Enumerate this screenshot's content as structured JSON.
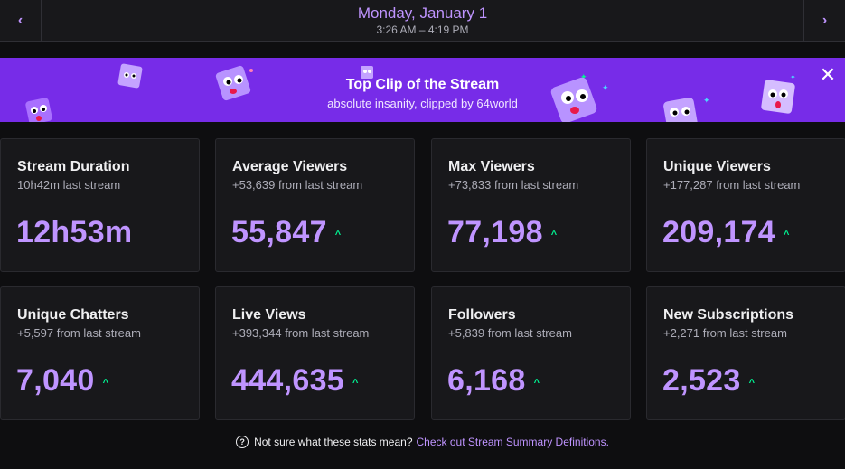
{
  "header": {
    "date": "Monday, January 1",
    "time_range": "3:26 AM – 4:19 PM",
    "prev_icon": "‹",
    "next_icon": "›"
  },
  "banner": {
    "title": "Top Clip of the Stream",
    "subtitle": "absolute insanity, clipped by 64world",
    "close_icon": "✕"
  },
  "cards": [
    {
      "title": "Stream Duration",
      "sub": "10h42m last stream",
      "value": "12h53m",
      "trend": ""
    },
    {
      "title": "Average Viewers",
      "sub": "+53,639 from last stream",
      "value": "55,847",
      "trend": "^"
    },
    {
      "title": "Max Viewers",
      "sub": "+73,833 from last stream",
      "value": "77,198",
      "trend": "^"
    },
    {
      "title": "Unique Viewers",
      "sub": "+177,287 from last stream",
      "value": "209,174",
      "trend": "^"
    },
    {
      "title": "Unique Chatters",
      "sub": "+5,597 from last stream",
      "value": "7,040",
      "trend": "^"
    },
    {
      "title": "Live Views",
      "sub": "+393,344 from last stream",
      "value": "444,635",
      "trend": "^"
    },
    {
      "title": "Followers",
      "sub": "+5,839 from last stream",
      "value": "6,168",
      "trend": "^"
    },
    {
      "title": "New Subscriptions",
      "sub": "+2,271 from last stream",
      "value": "2,523",
      "trend": "^"
    }
  ],
  "footer": {
    "help_icon": "?",
    "text": "Not sure what these stats mean?",
    "link": "Check out Stream Summary Definitions."
  },
  "colors": {
    "accent": "#bf94ff",
    "banner": "#772ce8",
    "trend_up": "#00f593",
    "background": "#0e0e10",
    "card": "#18181b"
  }
}
